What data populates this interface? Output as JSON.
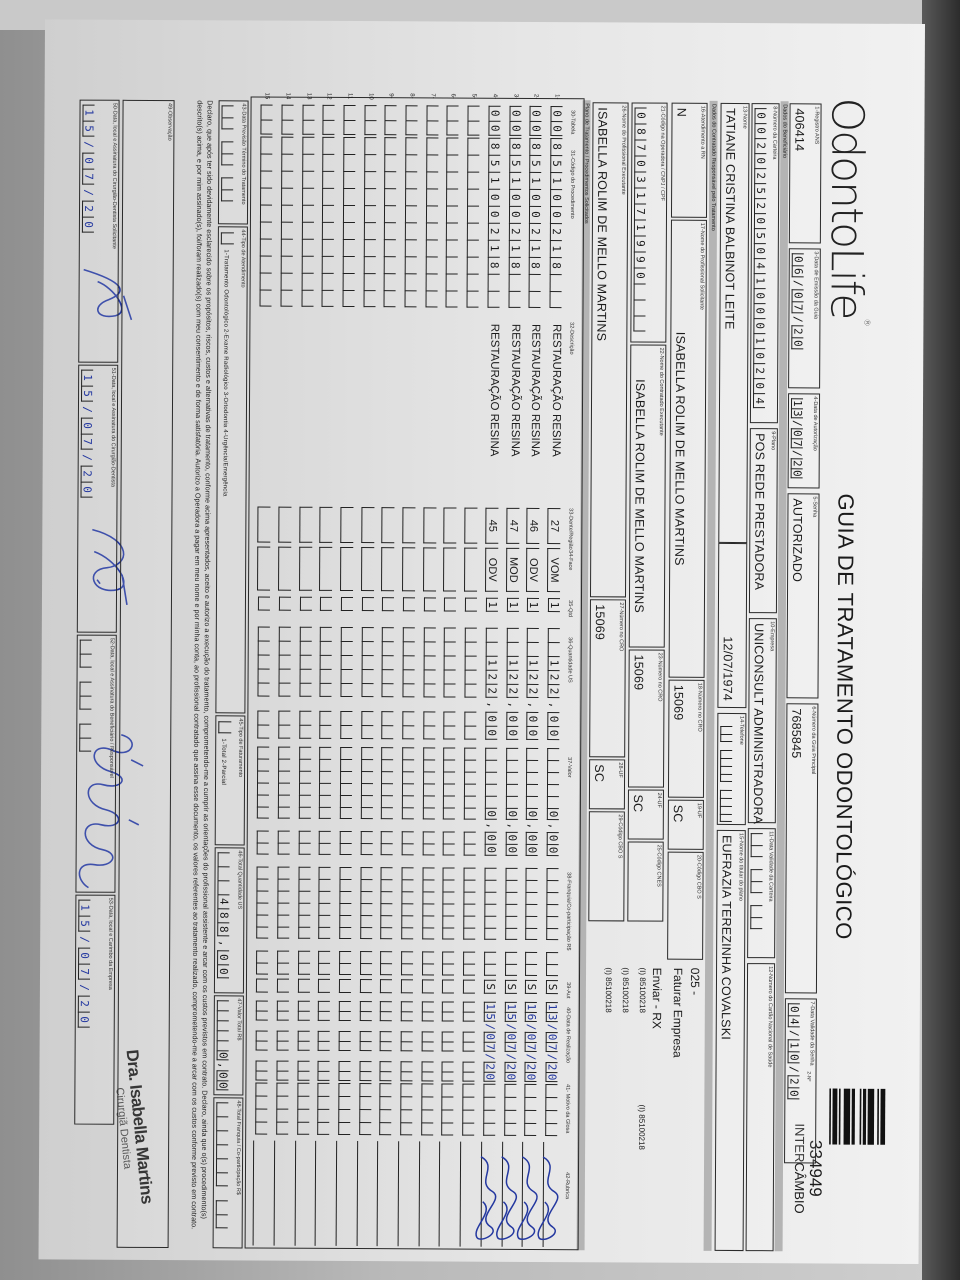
{
  "header": {
    "logo": "OdontoLife",
    "title": "GUIA DE TRATAMENTO ODONTOLÓGICO",
    "copy_label": "2-Nº",
    "guide_number": "334949",
    "guide_type": "INTERCÂMBIO"
  },
  "fields": {
    "f1": {
      "label": "1-Registro ANS",
      "value": "406414"
    },
    "f3": {
      "label": "3-Data de Emissão da Guia",
      "value": "06/07/20"
    },
    "f4": {
      "label": "4-Data de Autorização",
      "value": "13/07/20"
    },
    "f5": {
      "label": "5-Senha",
      "value": "AUTORIZADO"
    },
    "f6": {
      "label": "6-Número da Guia Principal",
      "value": "7685845"
    },
    "f7": {
      "label": "7-Data Validade da Senha",
      "value": "04/10/20"
    },
    "f8": {
      "label": "8-Número da Carteira",
      "value": "00202520504100010204"
    },
    "f9": {
      "label": "9-Plano",
      "value": "POS REDE PRESTADORA"
    },
    "f10": {
      "label": "10-Empresa",
      "value": "UNICONSULT ADMINISTRADORA"
    },
    "f11": {
      "label": "11-Data Validade da Carteira",
      "value": ""
    },
    "f12": {
      "label": "12-Número do Cartão Nacional de Saúde",
      "value": ""
    },
    "f13": {
      "label": "13-Nome",
      "value": "TATIANE CRISTINA BALBINOT LEITE"
    },
    "birth": {
      "label": "",
      "value": "12/07/1974"
    },
    "f14": {
      "label": "14-Telefone",
      "value": ""
    },
    "f15": {
      "label": "15-Nome do titular do plano",
      "value": "EUFRAZIA TEREZINHA COVALSKI"
    },
    "f16": {
      "label": "16-Atendimento a RN",
      "value": "N"
    },
    "f17": {
      "label": "17-Nome do Profissional Solicitante",
      "value": "ISABELLA ROLIM DE MELLO MARTINS"
    },
    "f18": {
      "label": "18-Número no CRO",
      "value": "15069"
    },
    "f19": {
      "label": "19-UF",
      "value": "SC"
    },
    "f20": {
      "label": "20-Código CBO S",
      "value": ""
    },
    "f21": {
      "label": "21-Código na Operadora / CNPJ / CPF",
      "value": "08703171990"
    },
    "f22": {
      "label": "22-Nome do Contratado Executante",
      "value": "ISABELLA ROLIM DE MELLO MARTINS"
    },
    "f23": {
      "label": "23-Número no CRO",
      "value": "15069"
    },
    "f24": {
      "label": "24-UF",
      "value": "SC"
    },
    "f25": {
      "label": "25-Código CNES",
      "value": ""
    },
    "f26": {
      "label": "26-Nome do Profissional Executante",
      "value": "ISABELLA ROLIM DE MELLO MARTINS"
    },
    "f27": {
      "label": "27-Número no CRO",
      "value": "15069"
    },
    "f28": {
      "label": "28-UF",
      "value": "SC"
    },
    "f29": {
      "label": "29-Código CBO S",
      "value": ""
    },
    "f43": {
      "label": "43-Data Previsão Término do Tratamento",
      "value": ""
    },
    "f44": {
      "label": "44-Tipo de Atendimento",
      "value": "1-Tratamento Odontológico  2-Exame Radiológico  3-Ortodontia  4-Urgência/Emergência"
    },
    "f45": {
      "label": "45-Tipo de Faturamento",
      "value": "1-Total  2-Parcial"
    },
    "f46": {
      "label": "46-Total Quantidade US",
      "value": "488,00"
    },
    "f47": {
      "label": "47-Valor Total R$",
      "value": "0,00"
    },
    "f48": {
      "label": "48-Total Franquia / Co-participação R$",
      "value": ""
    },
    "f49": {
      "label": "49-Observação",
      "value": ""
    },
    "f50": {
      "label": "50-Data, local e Assinatura do Cirurgião-Dentista Solicitante",
      "value": "15/07/20"
    },
    "f51": {
      "label": "51-Data, local e Assinatura do Cirurgião-Dentista",
      "value": "15/07/20"
    },
    "f52": {
      "label": "52-Data, local e Assinatura do Beneficiário / Responsável",
      "value": ""
    },
    "f53": {
      "label": "53-Data, local e Carimbo da Empresa",
      "value": "15/07/20"
    }
  },
  "bands": {
    "beneficiario": "Dados do Beneficiário",
    "contratado": "Dados do Contratado Responsável pelo Tratamento",
    "plano": "Plano de Tratamento / Procedimentos Solicitados"
  },
  "side_notes": {
    "code": "025 -",
    "billing": "Faturar Empresa",
    "send": "Enviar - RX",
    "ref1": "(I) 85100218",
    "ref2": "(I) 85100218",
    "ref3": "(I) 85100218",
    "ref4": "(I) 85100218"
  },
  "table": {
    "headers": {
      "tabela": "30-Tabela",
      "codigo": "31-Código do Procedimento",
      "descricao": "32-Descrição",
      "dente": "33-Dente/Região",
      "face": "34-Face",
      "qtd": "35-Qtd",
      "us": "36-Quantidade US",
      "valor": "37-Valor",
      "franquia": "38-Franquia/Co-participação R$",
      "aut": "39-Aut",
      "data": "40-Data de Realização",
      "motivo": "41- Motivo da Glosa",
      "rubrica": "42-Rubrica"
    },
    "rows": [
      {
        "n": "1-",
        "tabela": "00",
        "codigo": "85100218",
        "descricao": "RESTAURAÇÃO RESINA",
        "dente": "27",
        "face": "VOM",
        "qtd": "1",
        "us": "122,00",
        "valor": "0,00",
        "franquia": "",
        "aut": "S",
        "data": "13/07/20",
        "rubrica_signed": true
      },
      {
        "n": "2-",
        "tabela": "00",
        "codigo": "85100218",
        "descricao": "RESTAURAÇÃO RESINA",
        "dente": "46",
        "face": "ODV",
        "qtd": "1",
        "us": "122,00",
        "valor": "0,00",
        "franquia": "",
        "aut": "S",
        "data": "16/07/20",
        "rubrica_signed": true
      },
      {
        "n": "3-",
        "tabela": "00",
        "codigo": "85100218",
        "descricao": "RESTAURAÇÃO RESINA",
        "dente": "47",
        "face": "MOD",
        "qtd": "1",
        "us": "122,00",
        "valor": "0,00",
        "franquia": "",
        "aut": "S",
        "data": "15/07/20",
        "rubrica_signed": true
      },
      {
        "n": "4-",
        "tabela": "00",
        "codigo": "85100218",
        "descricao": "RESTAURAÇÃO RESINA",
        "dente": "45",
        "face": "ODV",
        "qtd": "1",
        "us": "122,00",
        "valor": "0,00",
        "franquia": "",
        "aut": "S",
        "data": "15/07/20",
        "rubrica_signed": true
      },
      {
        "n": "5-"
      },
      {
        "n": "6-"
      },
      {
        "n": "7-"
      },
      {
        "n": "8-"
      },
      {
        "n": "9-"
      },
      {
        "n": "10"
      },
      {
        "n": "11"
      },
      {
        "n": "12"
      },
      {
        "n": "13"
      },
      {
        "n": "14"
      },
      {
        "n": "15"
      }
    ]
  },
  "declaration": "Declaro, que após ter sido devidamente esclarecido sobre os propósitos, riscos, custos e alternativas de tratamento, conforme acima apresentados, aceito e autorizo a execução do tratamento, comprometendo-me a cumprir as orientações do profissional assistente e arcar com os custos previstos em contrato. Declaro, ainda que o(s) procedimento(s) descrito(s) acima, e por mim assinado(s), foi/foram realizado(s) com meu consentimento e de forma satisfatória. Autorizo a Operadora a pagar em meu nome e por minha conta, ao profissional contratado que assina esse documento, os valores referentes ao tratamento realizado, comprometendo-me a arcar com os custos conforme previsto em contrato.",
  "stamp": {
    "line1": "Dra. Isabella Martins",
    "line2": "Cirurgiã Dentista"
  },
  "colors": {
    "ink_blue": "#2438a0",
    "band_gray": "#b4b4b4"
  }
}
